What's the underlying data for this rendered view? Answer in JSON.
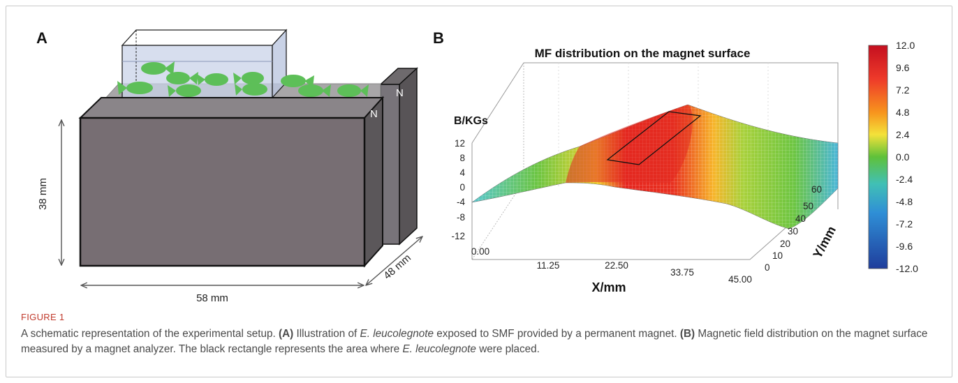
{
  "panel_a": {
    "label": "A",
    "height_dim": "38 mm",
    "width_dim": "58 mm",
    "depth_dim": "48 mm",
    "pole_front": "N",
    "pole_back": "N"
  },
  "panel_b": {
    "label": "B",
    "title": "MF distribution on the magnet surface",
    "z_label": "B/KGs",
    "x_label": "X/mm",
    "y_label": "Y/mm",
    "z_ticks": [
      "12",
      "8",
      "4",
      "0",
      "-4",
      "-8",
      "-12"
    ],
    "x_ticks": [
      "0.00",
      "11.25",
      "22.50",
      "33.75",
      "45.00"
    ],
    "y_ticks": [
      "0",
      "10",
      "20",
      "30",
      "40",
      "50",
      "60"
    ],
    "colorbar_ticks": [
      "12.0",
      "9.6",
      "7.2",
      "4.8",
      "2.4",
      "0.0",
      "-2.4",
      "-4.8",
      "-7.2",
      "-9.6",
      "-12.0"
    ],
    "colors": {
      "high": "#e31a1c",
      "mid": "#66c23a",
      "low": "#2b5aa8"
    }
  },
  "chart_data": {
    "type": "surface",
    "title": "MF distribution on the magnet surface",
    "xlabel": "X/mm",
    "ylabel": "Y/mm",
    "zlabel": "B/KGs",
    "xlim": [
      0,
      45
    ],
    "ylim": [
      0,
      60
    ],
    "zlim": [
      -12,
      12
    ],
    "colorbar_range": [
      -12.0,
      12.0
    ]
  },
  "caption": {
    "label": "FIGURE 1",
    "s1": "A schematic representation of the experimental setup.",
    "a_tag": "(A)",
    "s2": "Illustration of",
    "species1": "E. leucolegnote",
    "s3": "exposed to SMF provided by a permanent magnet.",
    "b_tag": "(B)",
    "s4": "Magnetic field distribution on the magnet surface measured by a magnet analyzer. The black rectangle represents the area where",
    "species2": "E. leucolegnote",
    "s5": "were placed."
  }
}
